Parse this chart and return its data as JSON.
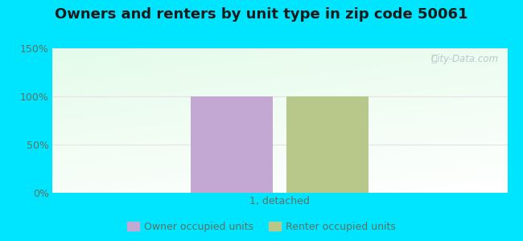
{
  "title": "Owners and renters by unit type in zip code 50061",
  "categories": [
    "1, detached"
  ],
  "owner_values": [
    100
  ],
  "renter_values": [
    100
  ],
  "owner_color": "#c4a8d4",
  "renter_color": "#b8c88a",
  "ylim": [
    0,
    150
  ],
  "yticks": [
    0,
    50,
    100,
    150
  ],
  "ytick_labels": [
    "0%",
    "50%",
    "100%",
    "150%"
  ],
  "outer_bg": "#00e5ff",
  "watermark": "City-Data.com",
  "legend_owner": "Owner occupied units",
  "legend_renter": "Renter occupied units",
  "bar_width": 0.18,
  "title_fontsize": 13,
  "xlabel_color": "#607060",
  "ytick_color": "#607060"
}
